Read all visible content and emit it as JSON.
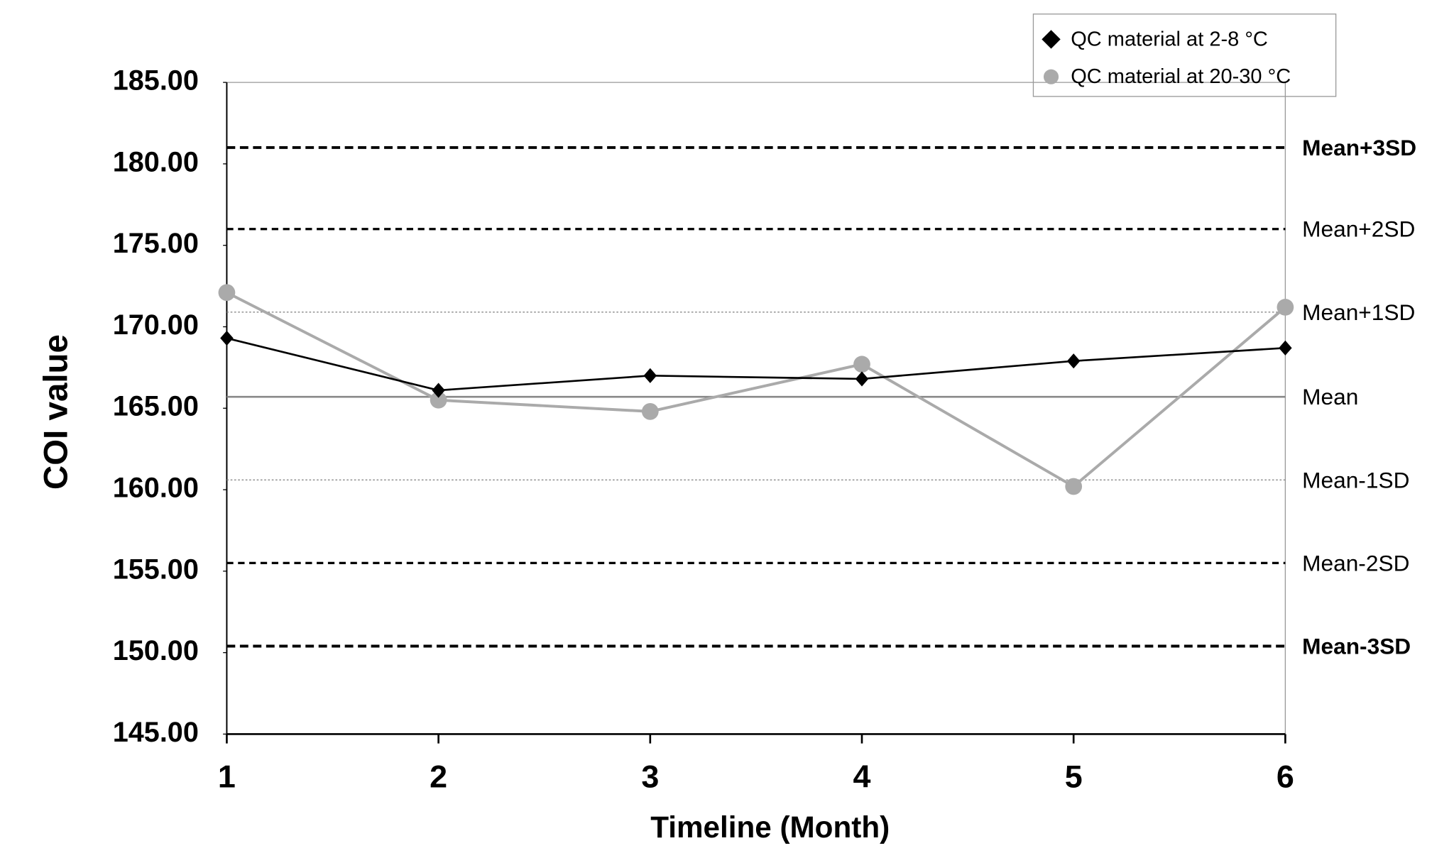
{
  "chart_data": {
    "type": "line",
    "xlabel": "Timeline (Month)",
    "ylabel": "COI value",
    "x": [
      1,
      2,
      3,
      4,
      5,
      6
    ],
    "xlim": [
      1,
      6
    ],
    "xticks": [
      1,
      2,
      3,
      4,
      5,
      6
    ],
    "ylim": [
      145,
      185
    ],
    "yticks": [
      {
        "value": 145,
        "label": "145.00"
      },
      {
        "value": 150,
        "label": "150.00"
      },
      {
        "value": 155,
        "label": "155.00"
      },
      {
        "value": 160,
        "label": "160.00"
      },
      {
        "value": 165,
        "label": "165.00"
      },
      {
        "value": 170,
        "label": "170.00"
      },
      {
        "value": 175,
        "label": "175.00"
      },
      {
        "value": 180,
        "label": "180.00"
      },
      {
        "value": 185,
        "label": "185.00"
      }
    ],
    "series": [
      {
        "name": "QC material at 2-8 °C",
        "color": "#000000",
        "marker": "diamond",
        "values": [
          169.3,
          166.1,
          167.0,
          166.8,
          167.9,
          168.7
        ]
      },
      {
        "name": "QC material at 20-30 °C",
        "color": "#aaaaaa",
        "marker": "circle",
        "values": [
          172.1,
          165.5,
          164.8,
          167.7,
          160.2,
          171.2
        ]
      }
    ],
    "reference_lines": [
      {
        "label": "Mean+3SD",
        "value": 181.0,
        "style": "dashed-bold"
      },
      {
        "label": "Mean+2SD",
        "value": 176.0,
        "style": "dashed"
      },
      {
        "label": "Mean+1SD",
        "value": 170.9,
        "style": "dotted"
      },
      {
        "label": "Mean",
        "value": 165.7,
        "style": "solid"
      },
      {
        "label": "Mean-1SD",
        "value": 160.6,
        "style": "dotted"
      },
      {
        "label": "Mean-2SD",
        "value": 155.5,
        "style": "dashed"
      },
      {
        "label": "Mean-3SD",
        "value": 150.4,
        "style": "dashed-bold"
      }
    ],
    "legend": "top-right"
  }
}
